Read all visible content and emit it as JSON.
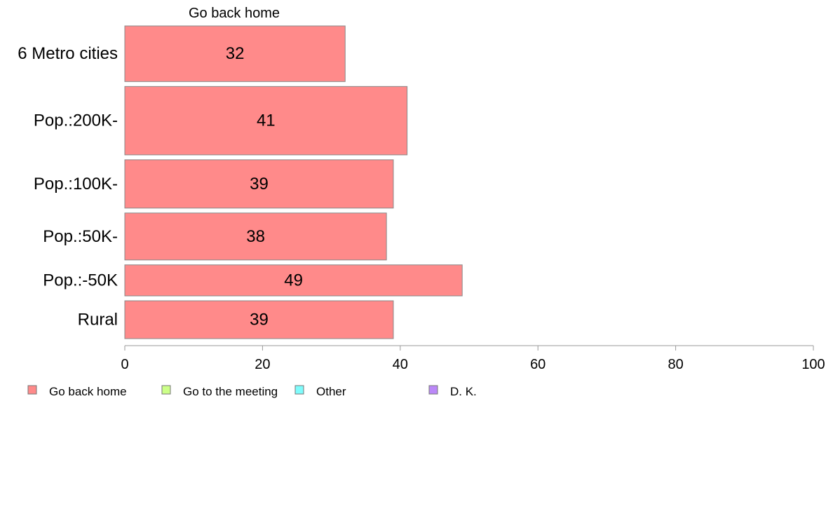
{
  "chart_data": {
    "type": "bar",
    "orientation": "horizontal",
    "series_title": "Go back home",
    "categories": [
      "6 Metro cities",
      "Pop.:200K-",
      "Pop.:100K-",
      "Pop.:50K-",
      "Pop.:-50K",
      "Rural"
    ],
    "category_weights": [
      1.22,
      1.5,
      1.06,
      1.03,
      0.68,
      0.83
    ],
    "values": [
      32,
      41,
      39,
      38,
      49,
      39
    ],
    "bar_labels": [
      "32",
      "41",
      "39",
      "38",
      "49",
      "39"
    ],
    "xlim": [
      0,
      100
    ],
    "xticks": [
      "0",
      "20",
      "40",
      "60",
      "80",
      "100"
    ],
    "grid": false,
    "legend_position": "bottom-left",
    "legend": [
      {
        "label": "Go back home",
        "color": "#ff8a8a"
      },
      {
        "label": "Go to the meeting",
        "color": "#ccff88"
      },
      {
        "label": "Other",
        "color": "#7ffcfc"
      },
      {
        "label": "D. K.",
        "color": "#bb88f8"
      }
    ],
    "colors": {
      "bar_fill": "#ff8a8a",
      "bar_stroke": "#888888",
      "axis": "#999999"
    }
  }
}
